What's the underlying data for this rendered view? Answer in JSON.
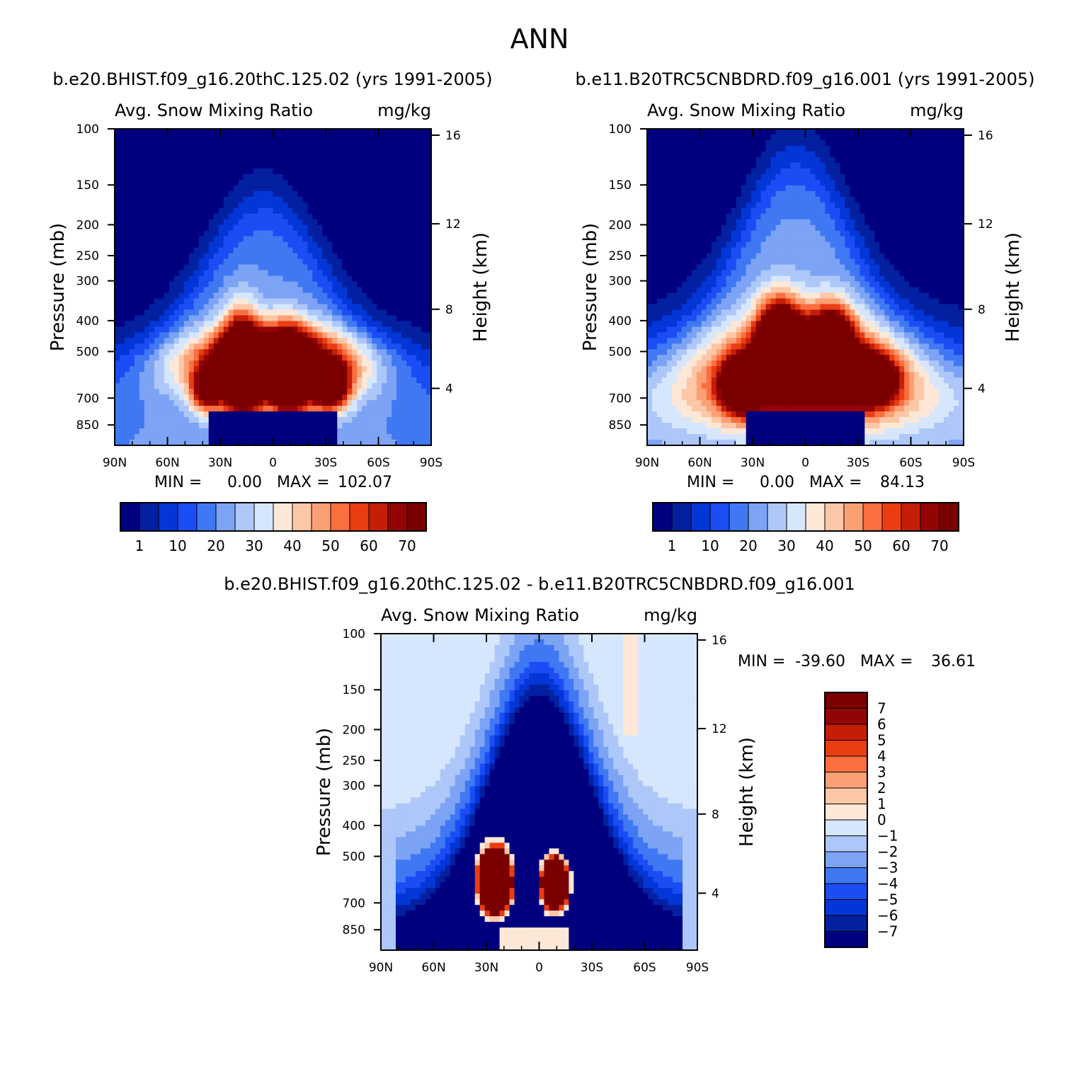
{
  "page_title": "ANN",
  "colors": {
    "seq_palette": [
      "#00007f",
      "#0220a0",
      "#0336d6",
      "#1b4df5",
      "#3f78f2",
      "#7da3f5",
      "#adc7f9",
      "#d6e6fc",
      "#fde8d8",
      "#fcc7a7",
      "#fba075",
      "#fa6e3f",
      "#ea3d12",
      "#c41e06",
      "#930404",
      "#7a0000"
    ],
    "accent": "#000000"
  },
  "chart_data": [
    {
      "id": "panel-1",
      "type": "heatmap",
      "title": "b.e20.BHIST.f09_g16.20thC.125.02 (yrs 1991-2005)",
      "variable_label": "Avg. Snow Mixing Ratio",
      "units_label": "mg/kg",
      "ylabel": "Pressure (mb)",
      "y2label": "Height (km)",
      "x_ticks": [
        "90N",
        "60N",
        "30N",
        "0",
        "30S",
        "60S",
        "90S"
      ],
      "y_ticks": [
        "100",
        "150",
        "200",
        "250",
        "300",
        "400",
        "500",
        "700",
        "850"
      ],
      "y2_ticks": [
        "16",
        "12",
        "8",
        "4"
      ],
      "min_label": "MIN =",
      "min_value": "0.00",
      "max_label": "MAX =",
      "max_value": "102.07",
      "min": 0.0,
      "max": 102.07,
      "colorbar_labels": [
        "1",
        "10",
        "20",
        "30",
        "40",
        "50",
        "60",
        "70"
      ]
    },
    {
      "id": "panel-2",
      "type": "heatmap",
      "title": "b.e11.B20TRC5CNBDRD.f09_g16.001 (yrs 1991-2005)",
      "variable_label": "Avg. Snow Mixing Ratio",
      "units_label": "mg/kg",
      "ylabel": "Pressure (mb)",
      "y2label": "Height (km)",
      "x_ticks": [
        "90N",
        "60N",
        "30N",
        "0",
        "30S",
        "60S",
        "90S"
      ],
      "y_ticks": [
        "100",
        "150",
        "200",
        "250",
        "300",
        "400",
        "500",
        "700",
        "850"
      ],
      "y2_ticks": [
        "16",
        "12",
        "8",
        "4"
      ],
      "min_label": "MIN =",
      "min_value": "0.00",
      "max_label": "MAX =",
      "max_value": "84.13",
      "min": 0.0,
      "max": 84.13,
      "colorbar_labels": [
        "1",
        "10",
        "20",
        "30",
        "40",
        "50",
        "60",
        "70"
      ]
    },
    {
      "id": "panel-3",
      "type": "heatmap",
      "title": "b.e20.BHIST.f09_g16.20thC.125.02 - b.e11.B20TRC5CNBDRD.f09_g16.001",
      "variable_label": "Avg. Snow Mixing Ratio",
      "units_label": "mg/kg",
      "ylabel": "Pressure (mb)",
      "y2label": "Height (km)",
      "x_ticks": [
        "90N",
        "60N",
        "30N",
        "0",
        "30S",
        "60S",
        "90S"
      ],
      "y_ticks": [
        "100",
        "150",
        "200",
        "250",
        "300",
        "400",
        "500",
        "700",
        "850"
      ],
      "y2_ticks": [
        "16",
        "12",
        "8",
        "4"
      ],
      "min_label": "MIN =",
      "min_value": "-39.60",
      "max_label": "MAX =",
      "max_value": "36.61",
      "min": -39.6,
      "max": 36.61,
      "colorbar_labels": [
        "7",
        "6",
        "5",
        "4",
        "3",
        "2",
        "1",
        "0",
        "-1",
        "-2",
        "-3",
        "-4",
        "-5",
        "-6",
        "-7"
      ]
    }
  ]
}
